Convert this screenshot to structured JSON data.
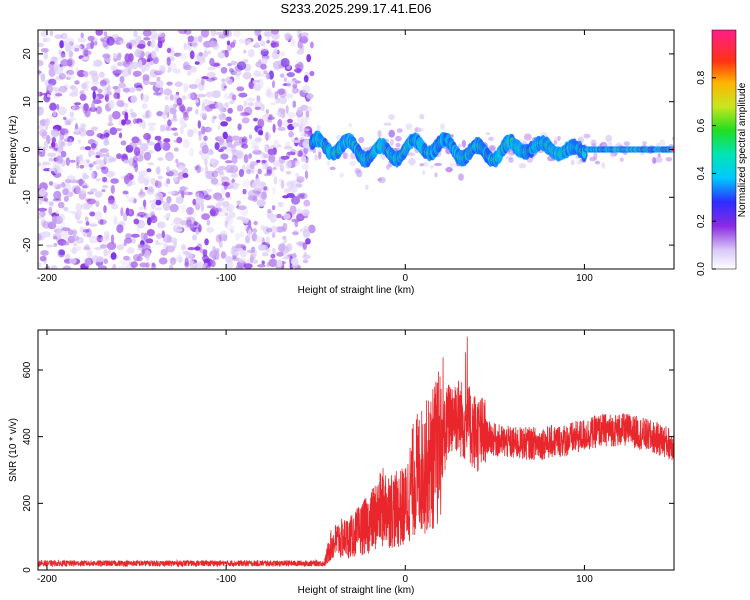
{
  "title": "S233.2025.299.17.41.E06",
  "chart_data": [
    {
      "type": "heatmap",
      "name": "spectrogram",
      "xlabel": "Height of straight line (km)",
      "ylabel": "Frequency (Hz)",
      "xlim": [
        -205,
        150
      ],
      "ylim": [
        -25,
        25
      ],
      "x_ticks": [
        -200,
        -100,
        0,
        100
      ],
      "y_ticks": [
        -20,
        -10,
        0,
        10,
        20
      ],
      "noise_region_x": [
        -205,
        -52
      ],
      "signal_region_x": [
        -52,
        150
      ],
      "signal_center_hz": 0,
      "colorbar": {
        "label": "Normalized spectral amplitude",
        "range": [
          0.0,
          1.0
        ],
        "ticks": [
          "0.0",
          "0.2",
          "0.4",
          "0.6",
          "0.8"
        ],
        "tick_values": [
          0.0,
          0.2,
          0.4,
          0.6,
          0.8
        ]
      }
    },
    {
      "type": "line",
      "name": "snr",
      "xlabel": "Height of straight line (km)",
      "ylabel": "SNR (10 * v/v)",
      "xlim": [
        -205,
        150
      ],
      "ylim": [
        0,
        720
      ],
      "x_ticks": [
        -200,
        -100,
        0,
        100
      ],
      "y_ticks": [
        0,
        200,
        400,
        600
      ],
      "color": "#e8262b",
      "series": [
        {
          "name": "SNR",
          "x": [
            -205,
            -150,
            -100,
            -60,
            -45,
            -42,
            -38,
            -30,
            -20,
            -12,
            -5,
            0,
            5,
            10,
            15,
            20,
            25,
            28,
            32,
            40,
            50,
            60,
            75,
            90,
            100,
            110,
            125,
            140,
            150
          ],
          "y": [
            20,
            20,
            20,
            20,
            20,
            70,
            90,
            100,
            140,
            190,
            180,
            190,
            280,
            300,
            330,
            380,
            460,
            470,
            450,
            410,
            390,
            380,
            380,
            390,
            405,
            420,
            420,
            395,
            375
          ]
        }
      ]
    }
  ]
}
